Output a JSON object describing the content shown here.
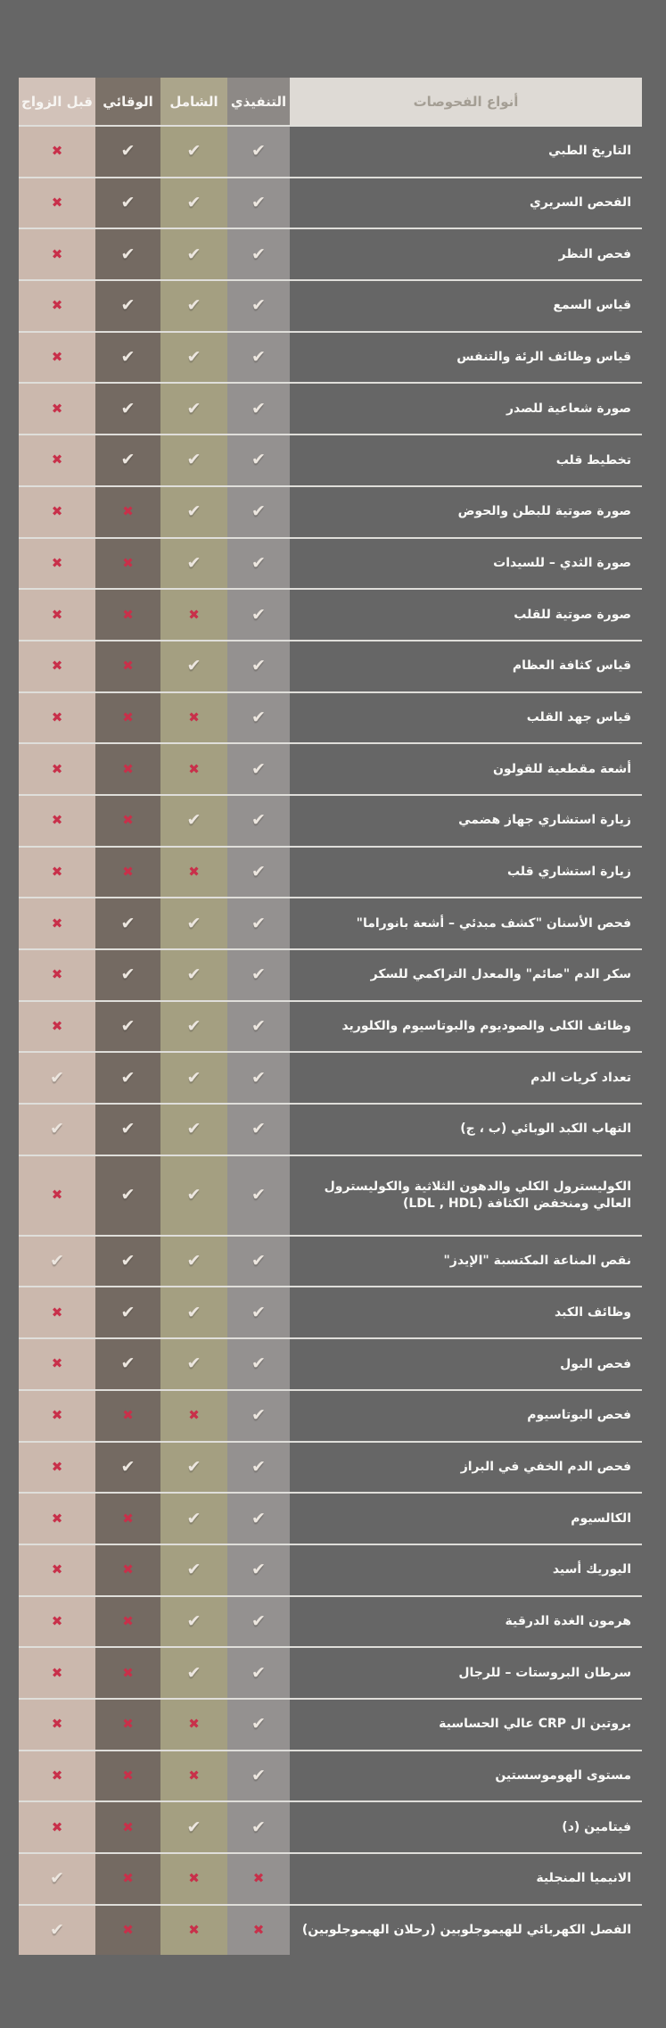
{
  "page": {
    "background_color": "#666666"
  },
  "table": {
    "header": {
      "types_label": "أنواع الفحوصات",
      "packages": [
        {
          "id": "executive",
          "label": "التنفيذي",
          "header_color": "#8d8986",
          "body_color": "#949190"
        },
        {
          "id": "comprehensive",
          "label": "الشامل",
          "header_color": "#aba58b",
          "body_color": "#a49f81"
        },
        {
          "id": "preventive",
          "label": "الوقائي",
          "header_color": "#7b7168",
          "body_color": "#746a62"
        },
        {
          "id": "pre_marriage",
          "label": "قبل الزواج",
          "header_color": "#d2c2b9",
          "body_color": "#cbb8ad"
        }
      ]
    },
    "glyphs": {
      "check": "✔",
      "x": "✖"
    },
    "colors": {
      "check": "#ece6df",
      "x": "#c8304a",
      "separator": "rgba(245,243,239,0.85)",
      "types_header_bg": "#dedad5",
      "types_header_text": "#a49e94",
      "row_text": "#fafaf8"
    },
    "rows": [
      {
        "name": "التاريخ الطبي",
        "executive": "check",
        "comprehensive": "check",
        "preventive": "check",
        "pre_marriage": "x"
      },
      {
        "name": "الفحص السريري",
        "executive": "check",
        "comprehensive": "check",
        "preventive": "check",
        "pre_marriage": "x"
      },
      {
        "name": "فحص النظر",
        "executive": "check",
        "comprehensive": "check",
        "preventive": "check",
        "pre_marriage": "x"
      },
      {
        "name": "قياس السمع",
        "executive": "check",
        "comprehensive": "check",
        "preventive": "check",
        "pre_marriage": "x"
      },
      {
        "name": "قياس وظائف الرئة والتنفس",
        "executive": "check",
        "comprehensive": "check",
        "preventive": "check",
        "pre_marriage": "x"
      },
      {
        "name": "صورة شعاعية للصدر",
        "executive": "check",
        "comprehensive": "check",
        "preventive": "check",
        "pre_marriage": "x"
      },
      {
        "name": "تخطيط قلب",
        "executive": "check",
        "comprehensive": "check",
        "preventive": "check",
        "pre_marriage": "x"
      },
      {
        "name": "صورة صوتية للبطن والحوض",
        "executive": "check",
        "comprehensive": "check",
        "preventive": "x",
        "pre_marriage": "x"
      },
      {
        "name": "صورة الثدي – للسيدات",
        "executive": "check",
        "comprehensive": "check",
        "preventive": "x",
        "pre_marriage": "x"
      },
      {
        "name": "صورة صوتية للقلب",
        "executive": "check",
        "comprehensive": "x",
        "preventive": "x",
        "pre_marriage": "x"
      },
      {
        "name": "قياس كثافة العظام",
        "executive": "check",
        "comprehensive": "check",
        "preventive": "x",
        "pre_marriage": "x"
      },
      {
        "name": "قياس جهد القلب",
        "executive": "check",
        "comprehensive": "x",
        "preventive": "x",
        "pre_marriage": "x"
      },
      {
        "name": "أشعة مقطعية للقولون",
        "executive": "check",
        "comprehensive": "x",
        "preventive": "x",
        "pre_marriage": "x"
      },
      {
        "name": "زيارة استشاري جهاز هضمي",
        "executive": "check",
        "comprehensive": "check",
        "preventive": "x",
        "pre_marriage": "x"
      },
      {
        "name": "زيارة استشاري قلب",
        "executive": "check",
        "comprehensive": "x",
        "preventive": "x",
        "pre_marriage": "x"
      },
      {
        "name": "فحص الأسنان \"كشف مبدئي – أشعة بانوراما\"",
        "executive": "check",
        "comprehensive": "check",
        "preventive": "check",
        "pre_marriage": "x"
      },
      {
        "name": "سكر الدم \"صائم\" والمعدل التراكمي للسكر",
        "executive": "check",
        "comprehensive": "check",
        "preventive": "check",
        "pre_marriage": "x"
      },
      {
        "name": "وظائف الكلى والصوديوم والبوتاسيوم والكلوريد",
        "executive": "check",
        "comprehensive": "check",
        "preventive": "check",
        "pre_marriage": "x"
      },
      {
        "name": "تعداد كريات الدم",
        "executive": "check",
        "comprehensive": "check",
        "preventive": "check",
        "pre_marriage": "check"
      },
      {
        "name": "التهاب الكبد الوبائي (ب ، ج)",
        "executive": "check",
        "comprehensive": "check",
        "preventive": "check",
        "pre_marriage": "check"
      },
      {
        "name": "الكوليسترول الكلي والدهون الثلاثية والكوليسترول العالي ومنخفض الكثافة (LDL , HDL)",
        "tall": true,
        "executive": "check",
        "comprehensive": "check",
        "preventive": "check",
        "pre_marriage": "x"
      },
      {
        "name": "نقص المناعة المكتسبة \"الإيدز\"",
        "executive": "check",
        "comprehensive": "check",
        "preventive": "check",
        "pre_marriage": "check"
      },
      {
        "name": "وظائف الكبد",
        "executive": "check",
        "comprehensive": "check",
        "preventive": "check",
        "pre_marriage": "x"
      },
      {
        "name": "فحص البول",
        "executive": "check",
        "comprehensive": "check",
        "preventive": "check",
        "pre_marriage": "x"
      },
      {
        "name": "فحص البوتاسيوم",
        "executive": "check",
        "comprehensive": "x",
        "preventive": "x",
        "pre_marriage": "x"
      },
      {
        "name": "فحص الدم الخفي في البراز",
        "executive": "check",
        "comprehensive": "check",
        "preventive": "check",
        "pre_marriage": "x"
      },
      {
        "name": "الكالسيوم",
        "executive": "check",
        "comprehensive": "check",
        "preventive": "x",
        "pre_marriage": "x"
      },
      {
        "name": "اليوريك أسيد",
        "executive": "check",
        "comprehensive": "check",
        "preventive": "x",
        "pre_marriage": "x"
      },
      {
        "name": "هرمون الغدة الدرقية",
        "executive": "check",
        "comprehensive": "check",
        "preventive": "x",
        "pre_marriage": "x"
      },
      {
        "name": "سرطان البروستات – للرجال",
        "executive": "check",
        "comprehensive": "check",
        "preventive": "x",
        "pre_marriage": "x"
      },
      {
        "name": "بروتين ال CRP عالي الحساسية",
        "executive": "check",
        "comprehensive": "x",
        "preventive": "x",
        "pre_marriage": "x"
      },
      {
        "name": "مستوى الهوموسستين",
        "executive": "check",
        "comprehensive": "x",
        "preventive": "x",
        "pre_marriage": "x"
      },
      {
        "name": "فيتامين (د)",
        "executive": "check",
        "comprehensive": "check",
        "preventive": "x",
        "pre_marriage": "x"
      },
      {
        "name": "الانيميا المنجلية",
        "executive": "x",
        "comprehensive": "x",
        "preventive": "x",
        "pre_marriage": "check"
      },
      {
        "name": "الفصل الكهربائي للهيموجلوبين (رحلان الهيموجلوبين)",
        "executive": "x",
        "comprehensive": "x",
        "preventive": "x",
        "pre_marriage": "check"
      }
    ]
  }
}
